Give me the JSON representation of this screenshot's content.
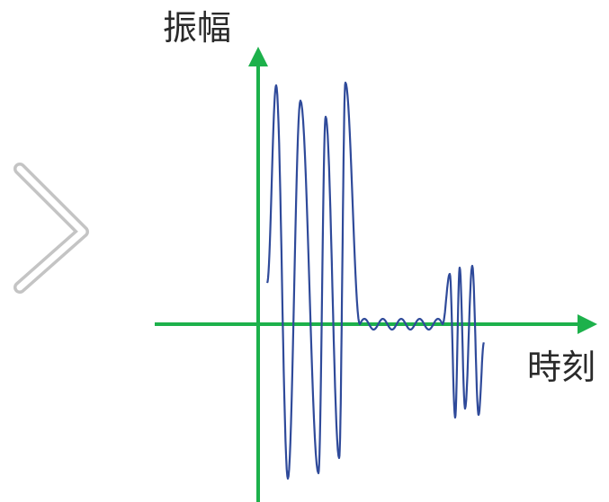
{
  "labels": {
    "y_axis": "振幅",
    "x_axis": "時刻"
  },
  "icons": {
    "nav": "chevron-right-icon"
  },
  "colors": {
    "axis": "#1db14b",
    "wave": "#2f4a9a",
    "chevron": "#c4c4c4",
    "text": "#2a2a2a"
  }
}
